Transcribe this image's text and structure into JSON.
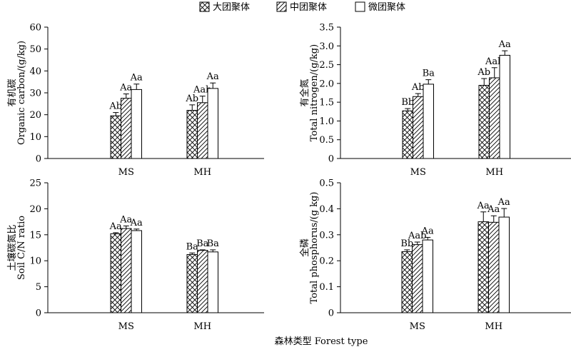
{
  "legend": {
    "items": [
      {
        "label": "大团聚体",
        "pattern": "crosshatch"
      },
      {
        "label": "中团聚体",
        "pattern": "diagonal"
      },
      {
        "label": "微团聚体",
        "pattern": "none"
      }
    ]
  },
  "x_axis_title": "森林类型  Forest type",
  "chart_data": [
    {
      "type": "bar",
      "ylabel_cn": "有机碳",
      "ylabel_en": "Organic carbon/(g/kg)",
      "ylim": [
        0,
        60
      ],
      "yticks": [
        "0",
        "10",
        "20",
        "30",
        "40",
        "50",
        "60"
      ],
      "categories": [
        "MS",
        "MH"
      ],
      "series": [
        {
          "name": "大团聚体",
          "values": [
            19.5,
            22.0
          ],
          "errors": [
            1.5,
            2.5
          ],
          "labels": [
            "Ab",
            "Ab"
          ]
        },
        {
          "name": "中团聚体",
          "values": [
            27.5,
            25.5
          ],
          "errors": [
            2.0,
            3.0
          ],
          "labels": [
            "Aa",
            "Aab"
          ]
        },
        {
          "name": "微团聚体",
          "values": [
            31.5,
            32.0
          ],
          "errors": [
            2.5,
            2.5
          ],
          "labels": [
            "Aa",
            "Aa"
          ]
        }
      ]
    },
    {
      "type": "bar",
      "ylabel_cn": "有全氮",
      "ylabel_en": "Total nitrogen/(g/kg)",
      "ylim": [
        0,
        3.5
      ],
      "yticks": [
        "0",
        "0.5",
        "1.0",
        "1.5",
        "2.0",
        "2.5",
        "3.0",
        "3.5"
      ],
      "categories": [
        "MS",
        "MH"
      ],
      "series": [
        {
          "name": "大团聚体",
          "values": [
            1.27,
            1.95
          ],
          "errors": [
            0.06,
            0.18
          ],
          "labels": [
            "Bb",
            "Ab"
          ]
        },
        {
          "name": "中团聚体",
          "values": [
            1.65,
            2.15
          ],
          "errors": [
            0.08,
            0.27
          ],
          "labels": [
            "Ab",
            "Aab"
          ]
        },
        {
          "name": "微团聚体",
          "values": [
            1.98,
            2.75
          ],
          "errors": [
            0.12,
            0.12
          ],
          "labels": [
            "Ba",
            "Aa"
          ]
        }
      ]
    },
    {
      "type": "bar",
      "ylabel_cn": "土壤碳氮比",
      "ylabel_en": "Soil C/N ratio",
      "ylim": [
        0,
        25
      ],
      "yticks": [
        "0",
        "5",
        "10",
        "15",
        "20",
        "25"
      ],
      "categories": [
        "MS",
        "MH"
      ],
      "series": [
        {
          "name": "大团聚体",
          "values": [
            15.2,
            11.2
          ],
          "errors": [
            0.2,
            0.3
          ],
          "labels": [
            "Aa",
            "Ba"
          ]
        },
        {
          "name": "中团聚体",
          "values": [
            16.2,
            12.0
          ],
          "errors": [
            0.5,
            0.1
          ],
          "labels": [
            "Aa",
            "Ba"
          ]
        },
        {
          "name": "微团聚体",
          "values": [
            15.8,
            11.7
          ],
          "errors": [
            0.3,
            0.4
          ],
          "labels": [
            "Aa",
            "Ba"
          ]
        }
      ]
    },
    {
      "type": "bar",
      "ylabel_cn": "全磷",
      "ylabel_en": "Total phosphorus/(g kg)",
      "ylim": [
        0,
        0.5
      ],
      "yticks": [
        "0",
        "0.1",
        "0.2",
        "0.3",
        "0.4",
        "0.5"
      ],
      "categories": [
        "MS",
        "MH"
      ],
      "series": [
        {
          "name": "大团聚体",
          "values": [
            0.235,
            0.35
          ],
          "errors": [
            0.007,
            0.038
          ],
          "labels": [
            "Bb",
            "Aa"
          ]
        },
        {
          "name": "中团聚体",
          "values": [
            0.262,
            0.348
          ],
          "errors": [
            0.01,
            0.025
          ],
          "labels": [
            "Aab",
            "Aa"
          ]
        },
        {
          "name": "微团聚体",
          "values": [
            0.28,
            0.368
          ],
          "errors": [
            0.01,
            0.033
          ],
          "labels": [
            "Aa",
            "Aa"
          ]
        }
      ]
    }
  ]
}
